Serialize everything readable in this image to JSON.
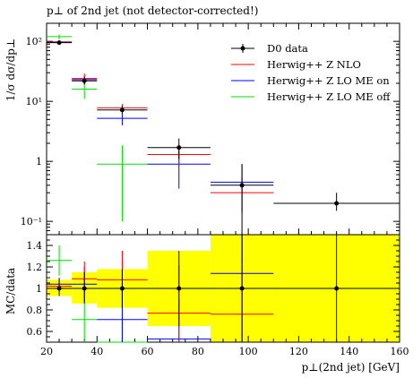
{
  "chart_data": {
    "type": "scatter",
    "title": "p⊥ of 2nd jet (not detector-corrected!)",
    "xlabel": "p⊥(2nd jet) [GeV]",
    "top_panel": {
      "ylabel": "1/σ dσ/dp⊥",
      "yscale": "log",
      "ylim": [
        0.06,
        200
      ],
      "yticks": [
        {
          "value": 100,
          "label": "10²"
        },
        {
          "value": 10,
          "label": "10¹"
        },
        {
          "value": 1,
          "label": "1"
        },
        {
          "value": 0.1,
          "label": "10⁻¹"
        }
      ]
    },
    "bottom_panel": {
      "ylabel": "MC/data",
      "ylim": [
        0.5,
        1.5
      ],
      "yticks": [
        0.6,
        0.8,
        1.0,
        1.2,
        1.4
      ],
      "ytick_labels": [
        "0.6",
        "0.8",
        "1",
        "1.2",
        "1.4"
      ],
      "band_color": "#ffff00"
    },
    "xlim": [
      20,
      160
    ],
    "xticks": [
      20,
      40,
      60,
      80,
      100,
      120,
      140,
      160
    ],
    "xtick_labels": [
      "20",
      "40",
      "60",
      "80",
      "100",
      "120",
      "140",
      "160"
    ],
    "legend": {
      "position": "top-right",
      "entries": [
        "D0 data",
        "Herwig++ Z NLO",
        "Herwig++ Z LO ME on",
        "Herwig++ Z LO ME off"
      ]
    },
    "bins": [
      [
        20,
        30
      ],
      [
        30,
        40
      ],
      [
        40,
        60
      ],
      [
        60,
        85
      ],
      [
        85,
        110
      ],
      [
        110,
        160
      ]
    ],
    "series": [
      {
        "name": "D0 data",
        "color": "#000000",
        "x": [
          25,
          35,
          50,
          72.5,
          97.5,
          135
        ],
        "values": [
          95,
          22,
          7.2,
          1.7,
          0.4,
          0.2
        ],
        "err_low": [
          90,
          19,
          6.2,
          1.1,
          0.02,
          0.15
        ],
        "err_high": [
          100,
          25.5,
          8.4,
          2.4,
          0.9,
          0.3
        ],
        "band_low": [
          0.93,
          0.86,
          0.82,
          0.65,
          0.5,
          0.5
        ],
        "band_high": [
          1.08,
          1.15,
          1.18,
          1.35,
          1.5,
          1.5
        ]
      },
      {
        "name": "Herwig++ Z NLO",
        "color": "#ff0000",
        "x": [
          25,
          35,
          50,
          72.5,
          97.5
        ],
        "values": [
          97,
          24,
          7.8,
          1.3,
          0.3
        ],
        "err_low": [
          93,
          19,
          6.5,
          0.85,
          0.15
        ],
        "err_high": [
          102,
          29,
          9.0,
          1.9,
          0.55
        ],
        "ratio": [
          1.02,
          1.09,
          1.08,
          0.77,
          0.76
        ],
        "ratio_err_low": [
          0.98,
          0.95,
          0.92,
          0.5,
          0.5
        ],
        "ratio_err_high": [
          1.06,
          1.25,
          1.35,
          1.22,
          1.22
        ]
      },
      {
        "name": "Herwig++ Z LO ME on",
        "color": "#0000ff",
        "x": [
          25,
          35,
          50,
          72.5,
          97.5
        ],
        "values": [
          98,
          23,
          5.2,
          0.9,
          0.45
        ],
        "err_low": [
          93,
          20,
          4.0,
          0.35,
          0.14
        ],
        "err_high": [
          104,
          27,
          6.5,
          1.45,
          0.9
        ],
        "ratio": [
          1.04,
          1.04,
          0.71,
          0.53,
          1.14
        ],
        "ratio_err_low": [
          0.98,
          0.88,
          0.5,
          0.5,
          0.5
        ],
        "ratio_err_high": [
          1.1,
          1.2,
          1.0,
          0.9,
          1.5
        ]
      },
      {
        "name": "Herwig++ Z LO ME off",
        "color": "#00dd00",
        "x": [
          25,
          35,
          50
        ],
        "values": [
          120,
          16,
          0.9
        ],
        "err_low": [
          108,
          11,
          0.1
        ],
        "err_high": [
          130,
          22,
          1.85
        ],
        "ratio": [
          1.26,
          0.71,
          0.5
        ],
        "ratio_err_low": [
          1.12,
          0.5,
          0.5
        ],
        "ratio_err_high": [
          1.4,
          0.97,
          0.76
        ]
      }
    ]
  }
}
